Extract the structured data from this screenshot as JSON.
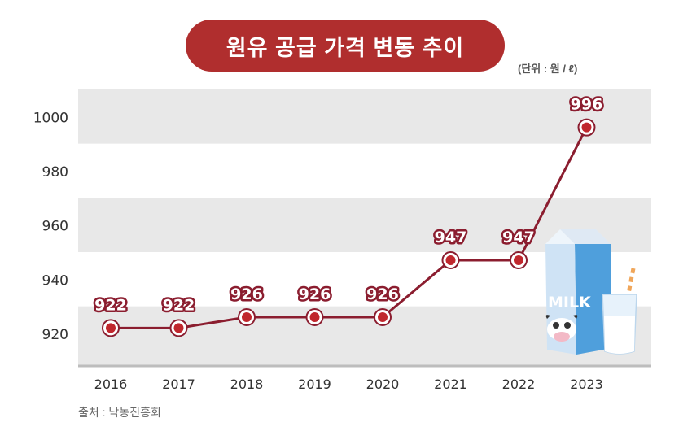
{
  "header": {
    "title": "원유 공급 가격 변동 추이",
    "unit": "(단위 : 원 / ℓ)"
  },
  "footer": {
    "source": "출처 : 낙농진흥회"
  },
  "colors": {
    "title_bg": "#b02e2e",
    "line": "#8b1d2f",
    "band": "#e8e8e8"
  },
  "illustration": {
    "carton_text": "MILK",
    "icons": [
      "milk-carton-icon",
      "milk-glass-icon",
      "straw-icon"
    ]
  },
  "chart_data": {
    "type": "line",
    "x": [
      "2016",
      "2017",
      "2018",
      "2019",
      "2020",
      "2021",
      "2022",
      "2023"
    ],
    "series": [
      {
        "values": [
          922,
          922,
          926,
          926,
          926,
          947,
          947,
          996
        ]
      }
    ],
    "data_labels": [
      "922",
      "922",
      "926",
      "926",
      "926",
      "947",
      "947",
      "996"
    ],
    "yticks": [
      "920",
      "940",
      "960",
      "980",
      "1000"
    ],
    "ylim": [
      908,
      1010
    ],
    "grid": "alternating horizontal bands",
    "legend": "none"
  }
}
